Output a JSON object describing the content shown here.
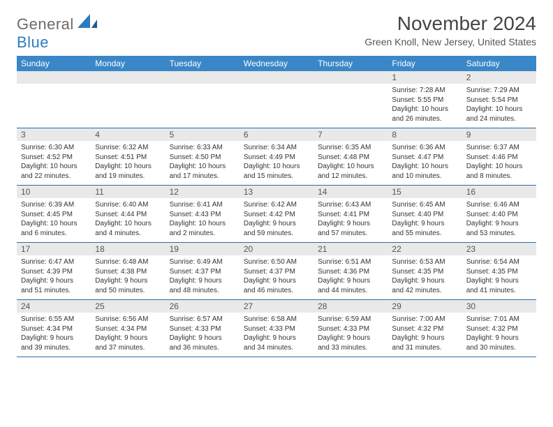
{
  "brand": {
    "text1": "General",
    "text2": "Blue"
  },
  "title": "November 2024",
  "location": "Green Knoll, New Jersey, United States",
  "colors": {
    "header_bg": "#3a87c7",
    "header_text": "#ffffff",
    "daynum_bg": "#e9e9e9",
    "border": "#2b6aa5",
    "brand_gray": "#6a6a6a",
    "brand_blue": "#2b7bbf"
  },
  "weekdays": [
    "Sunday",
    "Monday",
    "Tuesday",
    "Wednesday",
    "Thursday",
    "Friday",
    "Saturday"
  ],
  "weeks": [
    [
      {
        "empty": true
      },
      {
        "empty": true
      },
      {
        "empty": true
      },
      {
        "empty": true
      },
      {
        "empty": true
      },
      {
        "n": "1",
        "sunrise": "Sunrise: 7:28 AM",
        "sunset": "Sunset: 5:55 PM",
        "daylight": "Daylight: 10 hours and 26 minutes."
      },
      {
        "n": "2",
        "sunrise": "Sunrise: 7:29 AM",
        "sunset": "Sunset: 5:54 PM",
        "daylight": "Daylight: 10 hours and 24 minutes."
      }
    ],
    [
      {
        "n": "3",
        "sunrise": "Sunrise: 6:30 AM",
        "sunset": "Sunset: 4:52 PM",
        "daylight": "Daylight: 10 hours and 22 minutes."
      },
      {
        "n": "4",
        "sunrise": "Sunrise: 6:32 AM",
        "sunset": "Sunset: 4:51 PM",
        "daylight": "Daylight: 10 hours and 19 minutes."
      },
      {
        "n": "5",
        "sunrise": "Sunrise: 6:33 AM",
        "sunset": "Sunset: 4:50 PM",
        "daylight": "Daylight: 10 hours and 17 minutes."
      },
      {
        "n": "6",
        "sunrise": "Sunrise: 6:34 AM",
        "sunset": "Sunset: 4:49 PM",
        "daylight": "Daylight: 10 hours and 15 minutes."
      },
      {
        "n": "7",
        "sunrise": "Sunrise: 6:35 AM",
        "sunset": "Sunset: 4:48 PM",
        "daylight": "Daylight: 10 hours and 12 minutes."
      },
      {
        "n": "8",
        "sunrise": "Sunrise: 6:36 AM",
        "sunset": "Sunset: 4:47 PM",
        "daylight": "Daylight: 10 hours and 10 minutes."
      },
      {
        "n": "9",
        "sunrise": "Sunrise: 6:37 AM",
        "sunset": "Sunset: 4:46 PM",
        "daylight": "Daylight: 10 hours and 8 minutes."
      }
    ],
    [
      {
        "n": "10",
        "sunrise": "Sunrise: 6:39 AM",
        "sunset": "Sunset: 4:45 PM",
        "daylight": "Daylight: 10 hours and 6 minutes."
      },
      {
        "n": "11",
        "sunrise": "Sunrise: 6:40 AM",
        "sunset": "Sunset: 4:44 PM",
        "daylight": "Daylight: 10 hours and 4 minutes."
      },
      {
        "n": "12",
        "sunrise": "Sunrise: 6:41 AM",
        "sunset": "Sunset: 4:43 PM",
        "daylight": "Daylight: 10 hours and 2 minutes."
      },
      {
        "n": "13",
        "sunrise": "Sunrise: 6:42 AM",
        "sunset": "Sunset: 4:42 PM",
        "daylight": "Daylight: 9 hours and 59 minutes."
      },
      {
        "n": "14",
        "sunrise": "Sunrise: 6:43 AM",
        "sunset": "Sunset: 4:41 PM",
        "daylight": "Daylight: 9 hours and 57 minutes."
      },
      {
        "n": "15",
        "sunrise": "Sunrise: 6:45 AM",
        "sunset": "Sunset: 4:40 PM",
        "daylight": "Daylight: 9 hours and 55 minutes."
      },
      {
        "n": "16",
        "sunrise": "Sunrise: 6:46 AM",
        "sunset": "Sunset: 4:40 PM",
        "daylight": "Daylight: 9 hours and 53 minutes."
      }
    ],
    [
      {
        "n": "17",
        "sunrise": "Sunrise: 6:47 AM",
        "sunset": "Sunset: 4:39 PM",
        "daylight": "Daylight: 9 hours and 51 minutes."
      },
      {
        "n": "18",
        "sunrise": "Sunrise: 6:48 AM",
        "sunset": "Sunset: 4:38 PM",
        "daylight": "Daylight: 9 hours and 50 minutes."
      },
      {
        "n": "19",
        "sunrise": "Sunrise: 6:49 AM",
        "sunset": "Sunset: 4:37 PM",
        "daylight": "Daylight: 9 hours and 48 minutes."
      },
      {
        "n": "20",
        "sunrise": "Sunrise: 6:50 AM",
        "sunset": "Sunset: 4:37 PM",
        "daylight": "Daylight: 9 hours and 46 minutes."
      },
      {
        "n": "21",
        "sunrise": "Sunrise: 6:51 AM",
        "sunset": "Sunset: 4:36 PM",
        "daylight": "Daylight: 9 hours and 44 minutes."
      },
      {
        "n": "22",
        "sunrise": "Sunrise: 6:53 AM",
        "sunset": "Sunset: 4:35 PM",
        "daylight": "Daylight: 9 hours and 42 minutes."
      },
      {
        "n": "23",
        "sunrise": "Sunrise: 6:54 AM",
        "sunset": "Sunset: 4:35 PM",
        "daylight": "Daylight: 9 hours and 41 minutes."
      }
    ],
    [
      {
        "n": "24",
        "sunrise": "Sunrise: 6:55 AM",
        "sunset": "Sunset: 4:34 PM",
        "daylight": "Daylight: 9 hours and 39 minutes."
      },
      {
        "n": "25",
        "sunrise": "Sunrise: 6:56 AM",
        "sunset": "Sunset: 4:34 PM",
        "daylight": "Daylight: 9 hours and 37 minutes."
      },
      {
        "n": "26",
        "sunrise": "Sunrise: 6:57 AM",
        "sunset": "Sunset: 4:33 PM",
        "daylight": "Daylight: 9 hours and 36 minutes."
      },
      {
        "n": "27",
        "sunrise": "Sunrise: 6:58 AM",
        "sunset": "Sunset: 4:33 PM",
        "daylight": "Daylight: 9 hours and 34 minutes."
      },
      {
        "n": "28",
        "sunrise": "Sunrise: 6:59 AM",
        "sunset": "Sunset: 4:33 PM",
        "daylight": "Daylight: 9 hours and 33 minutes."
      },
      {
        "n": "29",
        "sunrise": "Sunrise: 7:00 AM",
        "sunset": "Sunset: 4:32 PM",
        "daylight": "Daylight: 9 hours and 31 minutes."
      },
      {
        "n": "30",
        "sunrise": "Sunrise: 7:01 AM",
        "sunset": "Sunset: 4:32 PM",
        "daylight": "Daylight: 9 hours and 30 minutes."
      }
    ]
  ]
}
